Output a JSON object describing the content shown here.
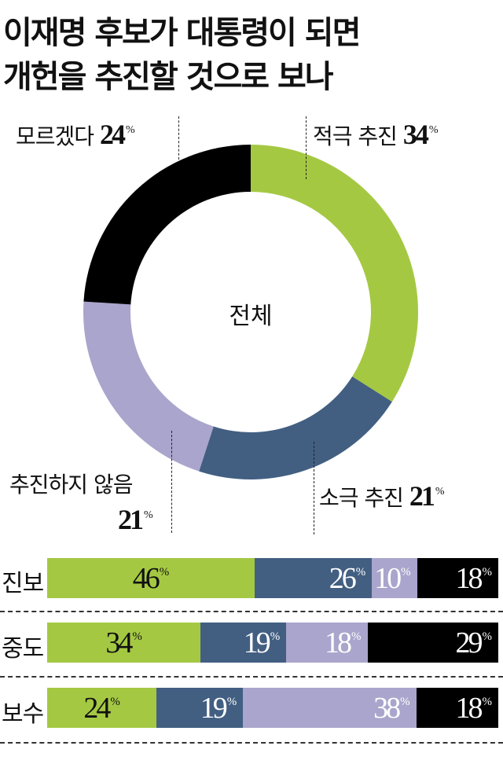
{
  "title": {
    "line1": "이재명 후보가 대통령이 되면",
    "line2": "개헌을 추진할 것으로 보나"
  },
  "donut": {
    "center_label": "전체",
    "segments": [
      {
        "label": "적극 추진",
        "value": "34",
        "color": "#a5c843"
      },
      {
        "label": "소극 추진",
        "value": "21",
        "color": "#425f82"
      },
      {
        "label": "추진하지 않음",
        "value": "21",
        "color": "#aaa5cc"
      },
      {
        "label": "모르겠다",
        "value": "24",
        "color": "#000000"
      }
    ],
    "percent_sign": "%"
  },
  "bars": {
    "rows": [
      {
        "label": "진보",
        "values": [
          "46",
          "26",
          "10",
          "18"
        ]
      },
      {
        "label": "중도",
        "values": [
          "34",
          "19",
          "18",
          "29"
        ]
      },
      {
        "label": "보수",
        "values": [
          "24",
          "19",
          "38",
          "18"
        ]
      }
    ],
    "colors": [
      "#a5c843",
      "#425f82",
      "#aaa5cc",
      "#000000"
    ],
    "text_colors": [
      "#111111",
      "#ffffff",
      "#ffffff",
      "#ffffff"
    ]
  },
  "chart_data": [
    {
      "type": "pie",
      "title": "이재명 후보가 대통령이 되면 개헌을 추진할 것으로 보나",
      "subtitle": "전체",
      "categories": [
        "적극 추진",
        "소극 추진",
        "추진하지 않음",
        "모르겠다"
      ],
      "values": [
        34,
        21,
        21,
        24
      ],
      "unit": "%",
      "donut": true
    },
    {
      "type": "bar",
      "orientation": "horizontal",
      "stacked": true,
      "categories": [
        "진보",
        "중도",
        "보수"
      ],
      "series": [
        {
          "name": "적극 추진",
          "values": [
            46,
            34,
            24
          ]
        },
        {
          "name": "소극 추진",
          "values": [
            26,
            19,
            19
          ]
        },
        {
          "name": "추진하지 않음",
          "values": [
            10,
            18,
            38
          ]
        },
        {
          "name": "모르겠다",
          "values": [
            18,
            29,
            18
          ]
        }
      ],
      "unit": "%"
    }
  ]
}
